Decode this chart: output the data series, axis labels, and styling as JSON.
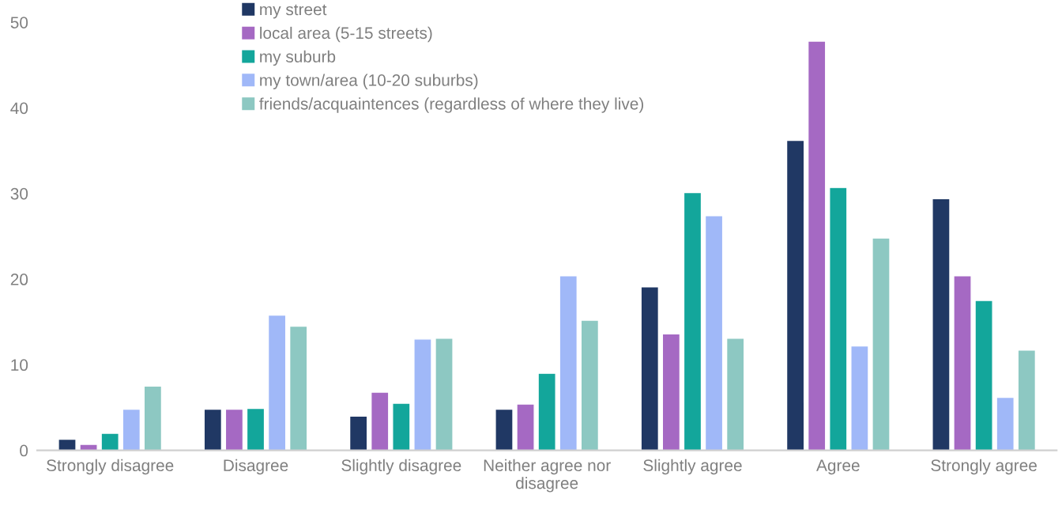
{
  "chart_data": {
    "type": "bar",
    "categories": [
      "Strongly disagree",
      "Disagree",
      "Slightly disagree",
      "Neither agree nor\ndisagree",
      "Slightly agree",
      "Agree",
      "Strongly agree"
    ],
    "series": [
      {
        "name": "my street",
        "color": "#203864",
        "values": [
          1.3,
          4.8,
          4.0,
          4.8,
          19.1,
          36.2,
          29.4
        ]
      },
      {
        "name": "local area (5-15 streets)",
        "color": "#a569c3",
        "values": [
          0.7,
          4.8,
          6.8,
          5.4,
          13.6,
          47.8,
          20.4
        ]
      },
      {
        "name": "my suburb",
        "color": "#13a69b",
        "values": [
          2.0,
          4.9,
          5.5,
          9.0,
          30.1,
          30.7,
          17.5
        ]
      },
      {
        "name": "my town/area (10-20 suburbs)",
        "color": "#a0b8f8",
        "values": [
          4.8,
          15.8,
          13.0,
          20.4,
          27.4,
          12.2,
          6.2
        ]
      },
      {
        "name": "friends/acquaintences (regardless of where they live)",
        "color": "#8dc8c2",
        "values": [
          7.5,
          14.5,
          13.1,
          15.2,
          13.1,
          24.8,
          11.7
        ]
      }
    ],
    "ylim": [
      0,
      50
    ],
    "yticks": [
      0,
      10,
      20,
      30,
      40,
      50
    ],
    "grid": false,
    "legend": "top"
  }
}
